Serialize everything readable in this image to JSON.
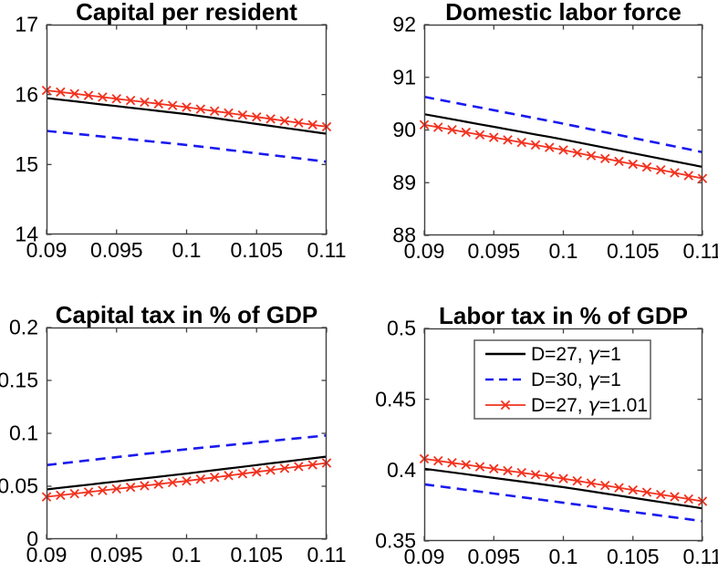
{
  "figure": {
    "background": "#ffffff"
  },
  "colors": {
    "black": "#000000",
    "blue": "#1a1af0",
    "red": "#f2321f",
    "axis": "#404040",
    "legend_border": "#5a5a5a"
  },
  "chart_data": [
    {
      "type": "line",
      "title": "Capital per resident",
      "xlim": [
        0.09,
        0.11
      ],
      "ylim": [
        14,
        17
      ],
      "xticks": [
        0.09,
        0.095,
        0.1,
        0.105,
        0.11
      ],
      "xtick_labels": [
        "0.09",
        "0.095",
        "0.1",
        "0.105",
        "0.11"
      ],
      "yticks": [
        14,
        15,
        16,
        17
      ],
      "ytick_labels": [
        "14",
        "15",
        "16",
        "17"
      ],
      "x": [
        0.09,
        0.091,
        0.092,
        0.093,
        0.094,
        0.095,
        0.096,
        0.097,
        0.098,
        0.099,
        0.1,
        0.101,
        0.102,
        0.103,
        0.104,
        0.105,
        0.106,
        0.107,
        0.108,
        0.109,
        0.11
      ],
      "series": [
        {
          "name": "D=27, γ=1",
          "color": "black",
          "style": "solid",
          "values": [
            15.95,
            15.927,
            15.904,
            15.881,
            15.858,
            15.835,
            15.812,
            15.789,
            15.766,
            15.743,
            15.72,
            15.692,
            15.664,
            15.636,
            15.608,
            15.58,
            15.552,
            15.524,
            15.496,
            15.468,
            15.44
          ]
        },
        {
          "name": "D=30, γ=1",
          "color": "blue",
          "style": "dashed",
          "values": [
            15.48,
            15.46,
            15.44,
            15.42,
            15.4,
            15.38,
            15.36,
            15.34,
            15.32,
            15.3,
            15.28,
            15.256,
            15.232,
            15.208,
            15.184,
            15.16,
            15.136,
            15.112,
            15.088,
            15.064,
            15.04
          ]
        },
        {
          "name": "D=27, γ=1.01",
          "color": "red",
          "style": "solid-x",
          "values": [
            16.06,
            16.036,
            16.012,
            15.988,
            15.964,
            15.94,
            15.916,
            15.892,
            15.868,
            15.844,
            15.82,
            15.792,
            15.764,
            15.736,
            15.708,
            15.68,
            15.652,
            15.624,
            15.596,
            15.568,
            15.54
          ]
        }
      ],
      "legend": null
    },
    {
      "type": "line",
      "title": "Domestic labor force",
      "xlim": [
        0.09,
        0.11
      ],
      "ylim": [
        88,
        92
      ],
      "xticks": [
        0.09,
        0.095,
        0.1,
        0.105,
        0.11
      ],
      "xtick_labels": [
        "0.09",
        "0.095",
        "0.1",
        "0.105",
        "0.11"
      ],
      "yticks": [
        88,
        89,
        90,
        91,
        92
      ],
      "ytick_labels": [
        "88",
        "89",
        "90",
        "91",
        "92"
      ],
      "x": [
        0.09,
        0.091,
        0.092,
        0.093,
        0.094,
        0.095,
        0.096,
        0.097,
        0.098,
        0.099,
        0.1,
        0.101,
        0.102,
        0.103,
        0.104,
        0.105,
        0.106,
        0.107,
        0.108,
        0.109,
        0.11
      ],
      "series": [
        {
          "name": "D=27, γ=1",
          "color": "black",
          "style": "solid",
          "values": [
            90.3,
            90.252,
            90.204,
            90.156,
            90.108,
            90.06,
            90.012,
            89.964,
            89.916,
            89.868,
            89.82,
            89.768,
            89.716,
            89.664,
            89.612,
            89.56,
            89.508,
            89.456,
            89.404,
            89.352,
            89.3
          ]
        },
        {
          "name": "D=30, γ=1",
          "color": "blue",
          "style": "dashed",
          "values": [
            90.63,
            90.579,
            90.528,
            90.477,
            90.426,
            90.375,
            90.324,
            90.273,
            90.222,
            90.171,
            90.12,
            90.066,
            90.012,
            89.958,
            89.904,
            89.85,
            89.796,
            89.742,
            89.688,
            89.634,
            89.58
          ]
        },
        {
          "name": "D=27, γ=1.01",
          "color": "red",
          "style": "solid-x",
          "values": [
            90.1,
            90.052,
            90.004,
            89.956,
            89.908,
            89.86,
            89.812,
            89.764,
            89.716,
            89.668,
            89.62,
            89.566,
            89.512,
            89.458,
            89.404,
            89.35,
            89.296,
            89.242,
            89.188,
            89.134,
            89.08
          ]
        }
      ],
      "legend": null
    },
    {
      "type": "line",
      "title": "Capital tax in % of GDP",
      "xlim": [
        0.09,
        0.11
      ],
      "ylim": [
        0,
        0.2
      ],
      "xticks": [
        0.09,
        0.095,
        0.1,
        0.105,
        0.11
      ],
      "xtick_labels": [
        "0.09",
        "0.095",
        "0.1",
        "0.105",
        "0.11"
      ],
      "yticks": [
        0,
        0.05,
        0.1,
        0.15,
        0.2
      ],
      "ytick_labels": [
        "0",
        "0.05",
        "0.1",
        "0.15",
        "0.2"
      ],
      "x": [
        0.09,
        0.091,
        0.092,
        0.093,
        0.094,
        0.095,
        0.096,
        0.097,
        0.098,
        0.099,
        0.1,
        0.101,
        0.102,
        0.103,
        0.104,
        0.105,
        0.106,
        0.107,
        0.108,
        0.109,
        0.11
      ],
      "series": [
        {
          "name": "D=27, γ=1",
          "color": "black",
          "style": "solid",
          "values": [
            0.047,
            0.0485,
            0.05,
            0.0515,
            0.053,
            0.0545,
            0.056,
            0.0575,
            0.059,
            0.0605,
            0.062,
            0.0636,
            0.0652,
            0.0668,
            0.0684,
            0.07,
            0.0716,
            0.0732,
            0.0748,
            0.0764,
            0.078
          ]
        },
        {
          "name": "D=30, γ=1",
          "color": "blue",
          "style": "dashed",
          "values": [
            0.07,
            0.0715,
            0.073,
            0.0745,
            0.076,
            0.0775,
            0.079,
            0.0805,
            0.082,
            0.0835,
            0.085,
            0.0863,
            0.0876,
            0.0889,
            0.0902,
            0.0915,
            0.0928,
            0.0941,
            0.0954,
            0.0967,
            0.098
          ]
        },
        {
          "name": "D=27, γ=1.01",
          "color": "red",
          "style": "solid-x",
          "values": [
            0.04,
            0.0415,
            0.043,
            0.0445,
            0.046,
            0.0475,
            0.049,
            0.0505,
            0.052,
            0.0535,
            0.055,
            0.0567,
            0.0584,
            0.0601,
            0.0618,
            0.0635,
            0.0652,
            0.0669,
            0.0686,
            0.0703,
            0.072
          ]
        }
      ],
      "legend": null
    },
    {
      "type": "line",
      "title": "Labor tax in % of GDP",
      "xlim": [
        0.09,
        0.11
      ],
      "ylim": [
        0.35,
        0.5
      ],
      "xticks": [
        0.09,
        0.095,
        0.1,
        0.105,
        0.11
      ],
      "xtick_labels": [
        "0.09",
        "0.095",
        "0.1",
        "0.105",
        "0.11"
      ],
      "yticks": [
        0.35,
        0.4,
        0.45,
        0.5
      ],
      "ytick_labels": [
        "0.35",
        "0.4",
        "0.45",
        "0.5"
      ],
      "x": [
        0.09,
        0.091,
        0.092,
        0.093,
        0.094,
        0.095,
        0.096,
        0.097,
        0.098,
        0.099,
        0.1,
        0.101,
        0.102,
        0.103,
        0.104,
        0.105,
        0.106,
        0.107,
        0.108,
        0.109,
        0.11
      ],
      "series": [
        {
          "name": "D=27, γ=1",
          "color": "black",
          "style": "solid",
          "values": [
            0.401,
            0.3997,
            0.3984,
            0.3971,
            0.3958,
            0.3945,
            0.3932,
            0.3919,
            0.3906,
            0.3893,
            0.388,
            0.3865,
            0.385,
            0.3835,
            0.382,
            0.3805,
            0.379,
            0.3775,
            0.376,
            0.3745,
            0.373
          ]
        },
        {
          "name": "D=30, γ=1",
          "color": "blue",
          "style": "dashed",
          "values": [
            0.39,
            0.3887,
            0.3874,
            0.3861,
            0.3848,
            0.3835,
            0.3822,
            0.3809,
            0.3796,
            0.3783,
            0.377,
            0.3757,
            0.3744,
            0.3731,
            0.3718,
            0.3705,
            0.3692,
            0.3679,
            0.3666,
            0.3653,
            0.364
          ]
        },
        {
          "name": "D=27, γ=1.01",
          "color": "red",
          "style": "solid-x",
          "values": [
            0.408,
            0.4066,
            0.4052,
            0.4038,
            0.4024,
            0.401,
            0.3996,
            0.3982,
            0.3968,
            0.3954,
            0.394,
            0.3924,
            0.3908,
            0.3892,
            0.3876,
            0.386,
            0.3844,
            0.3828,
            0.3812,
            0.3796,
            0.378
          ]
        }
      ],
      "legend": {
        "position": "north",
        "entries": [
          "D=27, γ=1",
          "D=30, γ=1",
          "D=27, γ=1.01"
        ]
      }
    }
  ]
}
